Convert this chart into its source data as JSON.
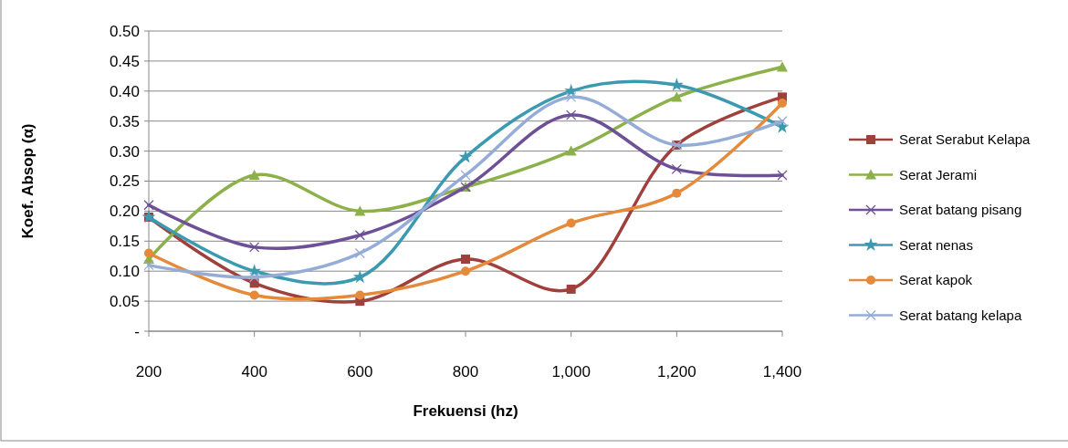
{
  "chart_data": {
    "type": "line",
    "xlabel": "Frekuensi (hz)",
    "ylabel": "Koef. Absop (α)",
    "x": [
      200,
      400,
      600,
      800,
      1000,
      1200,
      1400
    ],
    "xlim": [
      200,
      1400
    ],
    "xticks": [
      200,
      400,
      600,
      800,
      {
        "value": 1000,
        "label": "1,000"
      },
      {
        "value": 1200,
        "label": "1,200"
      },
      {
        "value": 1400,
        "label": "1,400"
      }
    ],
    "ylim": [
      0,
      0.5
    ],
    "yticks": [
      {
        "value": 0,
        "label": "-"
      },
      {
        "value": 0.05,
        "label": "0.05"
      },
      {
        "value": 0.1,
        "label": "0.10"
      },
      {
        "value": 0.15,
        "label": "0.15"
      },
      {
        "value": 0.2,
        "label": "0.20"
      },
      {
        "value": 0.25,
        "label": "0.25"
      },
      {
        "value": 0.3,
        "label": "0.30"
      },
      {
        "value": 0.35,
        "label": "0.35"
      },
      {
        "value": 0.4,
        "label": "0.40"
      },
      {
        "value": 0.45,
        "label": "0.45"
      },
      {
        "value": 0.5,
        "label": "0.50"
      }
    ],
    "grid": "y",
    "legend": "right",
    "series": [
      {
        "name": "Serat Serabut Kelapa",
        "color": "#a0403c",
        "marker": "square",
        "values": [
          0.19,
          0.08,
          0.05,
          0.12,
          0.07,
          0.31,
          0.39
        ]
      },
      {
        "name": "Serat Jerami",
        "color": "#8cb04a",
        "marker": "triangle",
        "values": [
          0.12,
          0.26,
          0.2,
          0.24,
          0.3,
          0.39,
          0.44
        ]
      },
      {
        "name": "Serat batang pisang",
        "color": "#6e5096",
        "marker": "cross",
        "values": [
          0.21,
          0.14,
          0.16,
          0.24,
          0.36,
          0.27,
          0.26
        ]
      },
      {
        "name": "Serat nenas",
        "color": "#3c9ab0",
        "marker": "star",
        "values": [
          0.19,
          0.1,
          0.09,
          0.29,
          0.4,
          0.41,
          0.34
        ]
      },
      {
        "name": "Serat kapok",
        "color": "#e58a3a",
        "marker": "circle",
        "values": [
          0.13,
          0.06,
          0.06,
          0.1,
          0.18,
          0.23,
          0.38
        ]
      },
      {
        "name": "Serat batang kelapa",
        "color": "#94acd6",
        "marker": "cross",
        "values": [
          0.11,
          0.09,
          0.13,
          0.26,
          0.39,
          0.31,
          0.35
        ]
      }
    ]
  }
}
